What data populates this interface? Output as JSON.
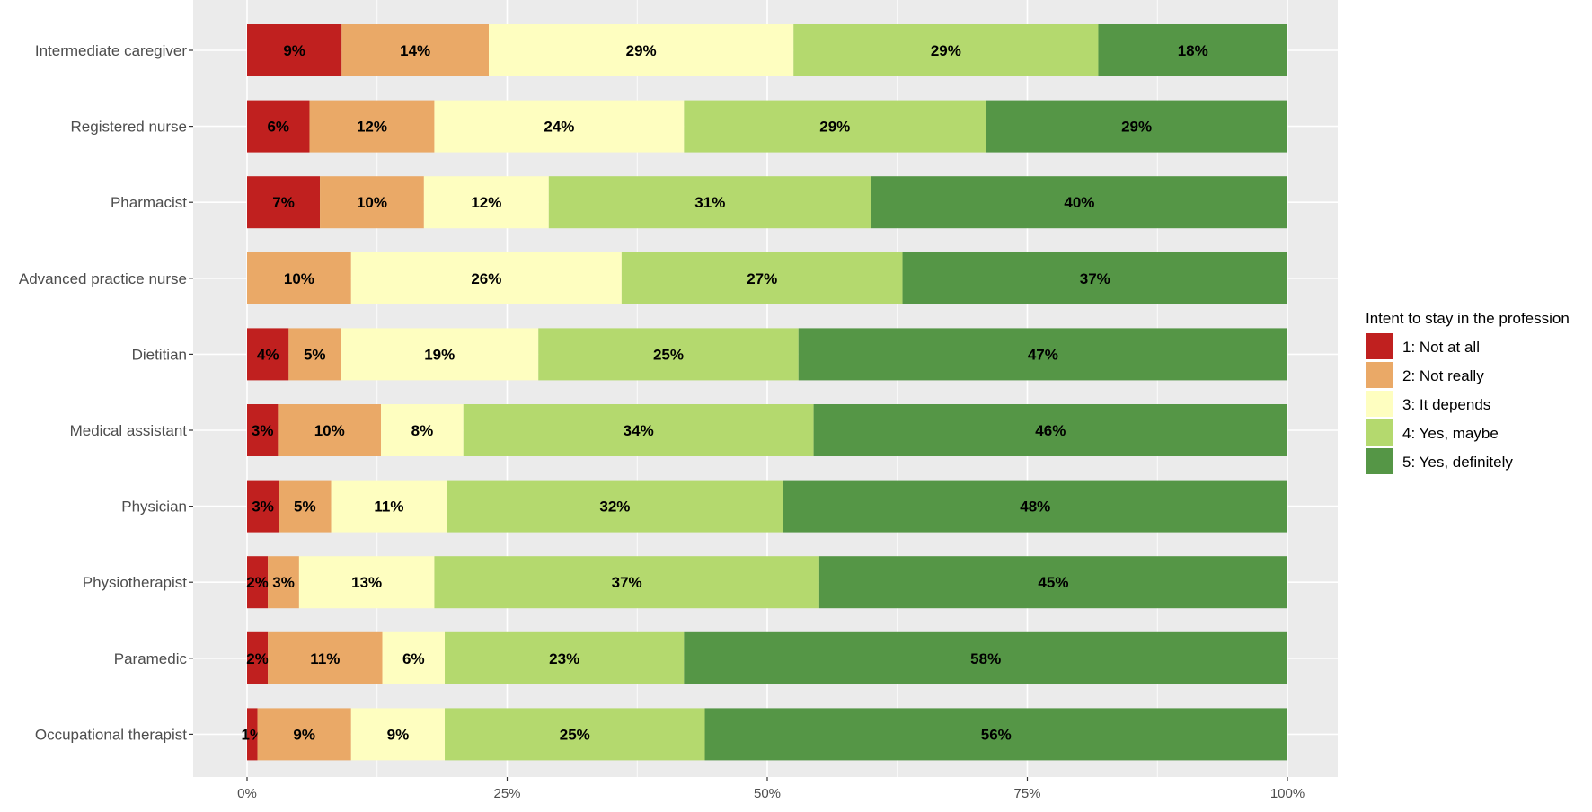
{
  "chart_data": {
    "type": "bar",
    "orientation": "horizontal",
    "stacked": true,
    "categories": [
      "Intermediate caregiver",
      "Registered nurse",
      "Pharmacist",
      "Advanced practice nurse",
      "Dietitian",
      "Medical assistant",
      "Physician",
      "Physiotherapist",
      "Paramedic",
      "Occupational therapist"
    ],
    "series": [
      {
        "name": "1: Not at all",
        "color": "#c0201f",
        "values": [
          9,
          6,
          7,
          0,
          4,
          3,
          3,
          2,
          2,
          1
        ],
        "labels": [
          "9%",
          "6%",
          "7%",
          "",
          "4%",
          "3%",
          "3%",
          "2%",
          "2%",
          "1%"
        ]
      },
      {
        "name": "2: Not really",
        "color": "#eaa967",
        "values": [
          14,
          12,
          10,
          10,
          5,
          10,
          5,
          3,
          11,
          9
        ],
        "labels": [
          "14%",
          "12%",
          "10%",
          "10%",
          "5%",
          "10%",
          "5%",
          "3%",
          "11%",
          "9%"
        ]
      },
      {
        "name": "3: It depends",
        "color": "#fefec0",
        "values": [
          29,
          24,
          12,
          26,
          19,
          8,
          11,
          13,
          6,
          9
        ],
        "labels": [
          "29%",
          "24%",
          "12%",
          "26%",
          "19%",
          "8%",
          "11%",
          "13%",
          "6%",
          "9%"
        ]
      },
      {
        "name": "4: Yes, maybe",
        "color": "#b4d96e",
        "values": [
          29,
          29,
          31,
          27,
          25,
          34,
          32,
          37,
          23,
          25
        ],
        "labels": [
          "29%",
          "29%",
          "31%",
          "27%",
          "25%",
          "34%",
          "32%",
          "37%",
          "23%",
          "25%"
        ]
      },
      {
        "name": "5: Yes, definitely",
        "color": "#559646",
        "values": [
          18,
          29,
          40,
          37,
          47,
          46,
          48,
          45,
          58,
          56
        ],
        "labels": [
          "18%",
          "29%",
          "40%",
          "37%",
          "47%",
          "46%",
          "48%",
          "45%",
          "58%",
          "56%"
        ]
      }
    ],
    "x_ticks": [
      "0%",
      "25%",
      "50%",
      "75%",
      "100%"
    ],
    "xlim": [
      0,
      100
    ],
    "xlabel": "",
    "ylabel": "",
    "legend": {
      "title": "Intent to stay in the profession",
      "position": "right"
    },
    "grid": true,
    "panel_background": "#ebebeb"
  }
}
